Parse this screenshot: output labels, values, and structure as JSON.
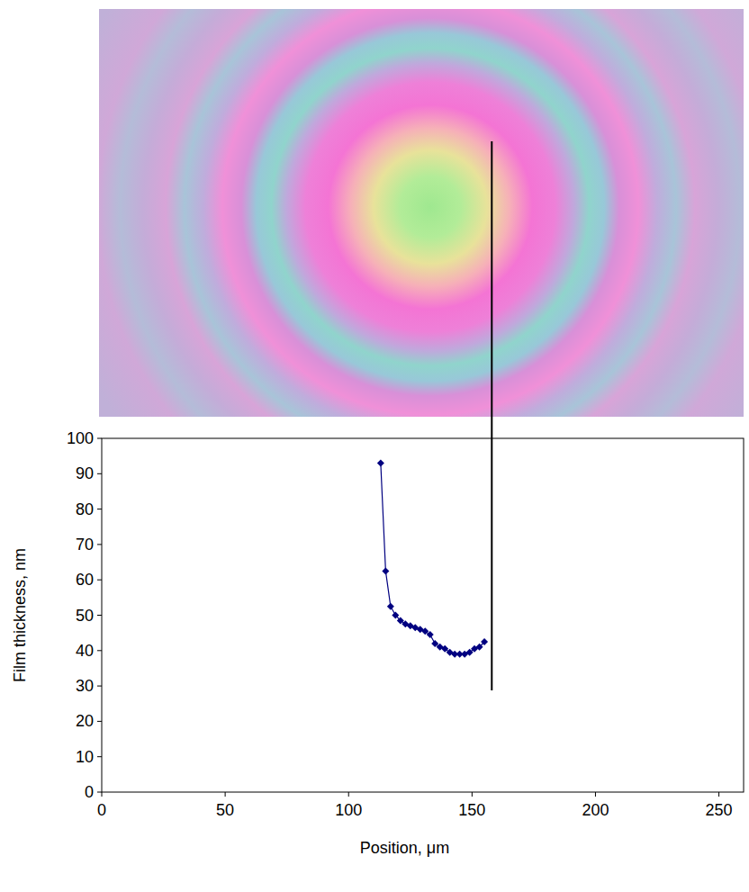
{
  "chart_data": {
    "type": "line",
    "x_label": "Position, μm",
    "y_label": "Film thickness, nm",
    "x": [
      113,
      115,
      117,
      119,
      121,
      123,
      125,
      127,
      129,
      131,
      133,
      135,
      137,
      139,
      141,
      143,
      145,
      147,
      149,
      151,
      153,
      155
    ],
    "series": [
      {
        "color": "#000080",
        "marker": "diamond",
        "line_style": "solid",
        "values": [
          93,
          62.5,
          52.5,
          50,
          48.5,
          47.5,
          47,
          46.5,
          46,
          45.5,
          44.5,
          42,
          41,
          40.5,
          39.5,
          39,
          39,
          39,
          39.5,
          40.5,
          41,
          42.5
        ]
      }
    ],
    "xlim": [
      0,
      260
    ],
    "ylim": [
      0,
      100
    ],
    "xticks": [
      0,
      50,
      100,
      150,
      200,
      250
    ],
    "yticks": [
      0,
      10,
      20,
      30,
      40,
      50,
      60,
      70,
      80,
      90,
      100
    ],
    "vline_x": 158,
    "grid": false
  }
}
